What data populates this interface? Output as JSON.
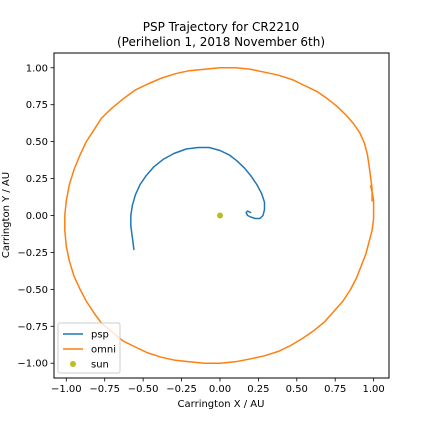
{
  "chart_data": {
    "type": "line",
    "title": "PSP Trajectory for CR2210",
    "subtitle": "(Perihelion 1, 2018 November 6th)",
    "xlabel": "Carrington X / AU",
    "ylabel": "Carrington Y / AU",
    "xlim": [
      -1.08,
      1.1
    ],
    "ylim": [
      -1.1,
      1.1
    ],
    "xticks": [
      -1.0,
      -0.75,
      -0.5,
      -0.25,
      0.0,
      0.25,
      0.5,
      0.75,
      1.0
    ],
    "xtick_labels": [
      "−1.00",
      "−0.75",
      "−0.50",
      "−0.25",
      "0.00",
      "0.25",
      "0.50",
      "0.75",
      "1.00"
    ],
    "yticks": [
      -1.0,
      -0.75,
      -0.5,
      -0.25,
      0.0,
      0.25,
      0.5,
      0.75,
      1.0
    ],
    "ytick_labels": [
      "−1.00",
      "−0.75",
      "−0.50",
      "−0.25",
      "0.00",
      "0.25",
      "0.50",
      "0.75",
      "1.00"
    ],
    "grid": false,
    "legend_position": "lower-left",
    "series": [
      {
        "name": "psp",
        "kind": "line",
        "color": "#1f77b4",
        "x": [
          -0.56,
          -0.57,
          -0.58,
          -0.58,
          -0.57,
          -0.55,
          -0.52,
          -0.48,
          -0.43,
          -0.37,
          -0.3,
          -0.22,
          -0.14,
          -0.07,
          0.0,
          0.06,
          0.11,
          0.16,
          0.2,
          0.24,
          0.27,
          0.29,
          0.29,
          0.28,
          0.26,
          0.23,
          0.2,
          0.18,
          0.17,
          0.18,
          0.2
        ],
        "y": [
          -0.23,
          -0.15,
          -0.07,
          0.0,
          0.07,
          0.14,
          0.21,
          0.27,
          0.33,
          0.38,
          0.42,
          0.45,
          0.46,
          0.46,
          0.44,
          0.41,
          0.37,
          0.32,
          0.27,
          0.21,
          0.15,
          0.09,
          0.04,
          0.0,
          -0.02,
          -0.02,
          -0.01,
          0.0,
          0.02,
          0.03,
          0.02
        ]
      },
      {
        "name": "omni",
        "kind": "line",
        "color": "#ff7f0e",
        "x": [
          0.99,
          0.99,
          0.98,
          0.97,
          0.96,
          0.94,
          0.91,
          0.87,
          0.82,
          0.76,
          0.7,
          0.63,
          0.55,
          0.47,
          0.38,
          0.29,
          0.2,
          0.1,
          0.0,
          -0.1,
          -0.2,
          -0.29,
          -0.38,
          -0.47,
          -0.55,
          -0.63,
          -0.7,
          -0.77,
          -0.82,
          -0.87,
          -0.91,
          -0.95,
          -0.98,
          -1.0,
          -1.01,
          -1.01,
          -1.0,
          -0.98,
          -0.95,
          -0.91,
          -0.87,
          -0.82,
          -0.77,
          -0.7,
          -0.63,
          -0.55,
          -0.47,
          -0.38,
          -0.29,
          -0.2,
          -0.1,
          0.0,
          0.1,
          0.2,
          0.29,
          0.38,
          0.46,
          0.54,
          0.61,
          0.68,
          0.74,
          0.8,
          0.85,
          0.89,
          0.92,
          0.95,
          0.97,
          0.99,
          1.0,
          1.0,
          1.0,
          0.99,
          0.98
        ],
        "y": [
          0.1,
          0.18,
          0.26,
          0.34,
          0.41,
          0.49,
          0.56,
          0.62,
          0.68,
          0.74,
          0.79,
          0.84,
          0.88,
          0.92,
          0.95,
          0.97,
          0.99,
          1.0,
          1.0,
          0.99,
          0.98,
          0.96,
          0.93,
          0.89,
          0.85,
          0.79,
          0.73,
          0.66,
          0.58,
          0.5,
          0.41,
          0.31,
          0.21,
          0.1,
          0.0,
          -0.1,
          -0.21,
          -0.31,
          -0.41,
          -0.5,
          -0.58,
          -0.66,
          -0.73,
          -0.79,
          -0.85,
          -0.89,
          -0.93,
          -0.96,
          -0.98,
          -0.99,
          -1.0,
          -1.0,
          -0.99,
          -0.97,
          -0.95,
          -0.92,
          -0.88,
          -0.83,
          -0.78,
          -0.72,
          -0.65,
          -0.58,
          -0.5,
          -0.42,
          -0.34,
          -0.26,
          -0.18,
          -0.1,
          -0.02,
          0.04,
          0.1,
          0.16,
          0.2
        ]
      },
      {
        "name": "sun",
        "kind": "scatter",
        "color": "#bcbd22",
        "x": [
          0.0
        ],
        "y": [
          0.0
        ]
      }
    ]
  }
}
